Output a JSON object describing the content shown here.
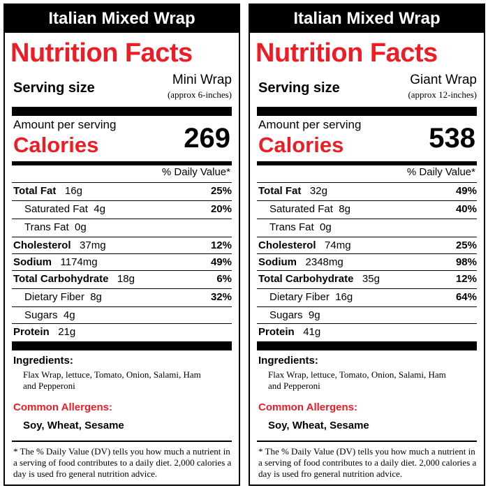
{
  "labels": [
    {
      "title": "Italian Mixed Wrap",
      "heading": "Nutrition Facts",
      "serving_label": "Serving size",
      "serving_name": "Mini Wrap",
      "serving_note": "(approx 6-inches)",
      "amount_label": "Amount per serving",
      "calories_label": "Calories",
      "calories": "269",
      "dv_header": "% Daily Value*",
      "nutrients": [
        {
          "name": "Total Fat",
          "amount": "16g",
          "pct": "25%"
        },
        {
          "name": "Saturated Fat",
          "amount": "4g",
          "pct": "20%"
        },
        {
          "name": "Trans Fat",
          "amount": "0g",
          "pct": ""
        },
        {
          "name": "Cholesterol",
          "amount": "37mg",
          "pct": "12%"
        },
        {
          "name": "Sodium",
          "amount": "1174mg",
          "pct": "49%"
        },
        {
          "name": "Total Carbohydrate",
          "amount": "18g",
          "pct": "6%"
        },
        {
          "name": "Dietary Fiber",
          "amount": "8g",
          "pct": "32%"
        },
        {
          "name": "Sugars",
          "amount": "4g",
          "pct": ""
        },
        {
          "name": "Protein",
          "amount": "21g",
          "pct": ""
        }
      ],
      "ingredients_label": "Ingredients:",
      "ingredients": "Flax Wrap, lettuce, Tomato, Onion, Salami, Ham and Pepperoni",
      "allergens_label": "Common Allergens:",
      "allergens": "Soy, Wheat, Sesame",
      "footnote": "* The % Daily Value (DV) tells you how much a nutrient in a serving of food contributes to a daily diet.  2,000 calories a day is used fro general nutrition advice."
    },
    {
      "title": "Italian Mixed Wrap",
      "heading": "Nutrition Facts",
      "serving_label": "Serving size",
      "serving_name": "Giant Wrap",
      "serving_note": "(approx 12-inches)",
      "amount_label": "Amount per serving",
      "calories_label": "Calories",
      "calories": "538",
      "dv_header": "% Daily Value*",
      "nutrients": [
        {
          "name": "Total Fat",
          "amount": "32g",
          "pct": "49%"
        },
        {
          "name": "Saturated Fat",
          "amount": "8g",
          "pct": "40%"
        },
        {
          "name": "Trans Fat",
          "amount": "0g",
          "pct": ""
        },
        {
          "name": "Cholesterol",
          "amount": "74mg",
          "pct": "25%"
        },
        {
          "name": "Sodium",
          "amount": "2348mg",
          "pct": "98%"
        },
        {
          "name": "Total Carbohydrate",
          "amount": "35g",
          "pct": "12%"
        },
        {
          "name": "Dietary Fiber",
          "amount": "16g",
          "pct": "64%"
        },
        {
          "name": "Sugars",
          "amount": "9g",
          "pct": ""
        },
        {
          "name": "Protein",
          "amount": "41g",
          "pct": ""
        }
      ],
      "ingredients_label": "Ingredients:",
      "ingredients": "Flax Wrap, lettuce, Tomato, Onion, Salami, Ham and Pepperoni",
      "allergens_label": "Common Allergens:",
      "allergens": "Soy, Wheat, Sesame",
      "footnote": "* The % Daily Value (DV) tells you how much a nutrient in a serving of food contributes to a daily diet.  2,000 calories a day is used fro general nutrition advice."
    }
  ]
}
